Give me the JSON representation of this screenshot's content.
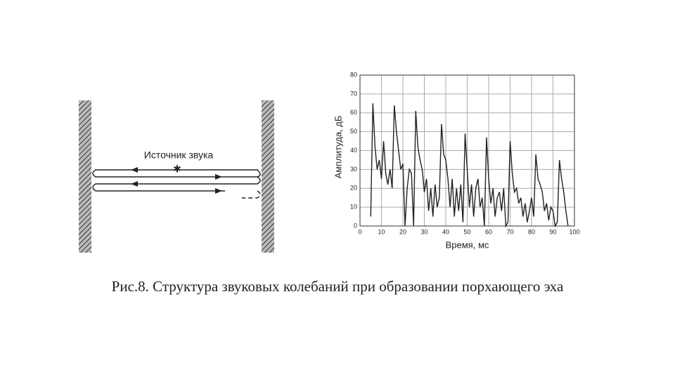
{
  "diagram": {
    "source_label": "Источник звука"
  },
  "chart_data": {
    "type": "line",
    "xlabel": "Время, мс",
    "ylabel": "Амплитуда, дБ",
    "x": [
      5,
      6,
      7,
      8,
      9,
      10,
      11,
      12,
      13,
      14,
      15,
      16,
      17,
      18,
      19,
      20,
      21,
      22,
      23,
      24,
      25,
      26,
      27,
      28,
      29,
      30,
      31,
      32,
      33,
      34,
      35,
      36,
      37,
      38,
      39,
      40,
      41,
      42,
      43,
      44,
      45,
      46,
      47,
      48,
      49,
      50,
      51,
      52,
      53,
      54,
      55,
      56,
      57,
      58,
      59,
      60,
      61,
      62,
      63,
      64,
      65,
      66,
      67,
      68,
      69,
      70,
      71,
      72,
      73,
      74,
      75,
      76,
      77,
      78,
      79,
      80,
      81,
      82,
      83,
      84,
      85,
      86,
      87,
      88,
      89,
      90,
      91,
      92,
      93,
      94,
      95,
      96,
      97
    ],
    "series": [
      {
        "color": "#222222",
        "values": [
          5,
          65,
          42,
          30,
          35,
          25,
          45,
          28,
          22,
          30,
          20,
          64,
          50,
          40,
          30,
          33,
          0,
          20,
          30,
          28,
          0,
          61,
          42,
          35,
          30,
          18,
          25,
          8,
          20,
          5,
          22,
          10,
          15,
          54,
          38,
          35,
          25,
          10,
          25,
          5,
          20,
          8,
          22,
          2,
          49,
          30,
          10,
          22,
          5,
          20,
          25,
          10,
          15,
          0,
          47,
          25,
          12,
          20,
          5,
          15,
          18,
          8,
          20,
          0,
          2,
          45,
          28,
          18,
          20,
          12,
          15,
          5,
          12,
          2,
          8,
          15,
          5,
          38,
          25,
          22,
          18,
          8,
          12,
          3,
          10,
          8,
          0,
          2,
          35,
          25,
          18,
          8,
          0
        ]
      }
    ],
    "xlim": [
      0,
      100
    ],
    "ylim": [
      0,
      80
    ],
    "xticks": [
      0,
      10,
      20,
      30,
      40,
      50,
      60,
      70,
      80,
      90,
      100
    ],
    "yticks": [
      0,
      10,
      20,
      30,
      40,
      50,
      60,
      70,
      80
    ],
    "grid": true
  },
  "caption": "Рис.8. Структура звуковых колебаний при образовании порхающего эха"
}
